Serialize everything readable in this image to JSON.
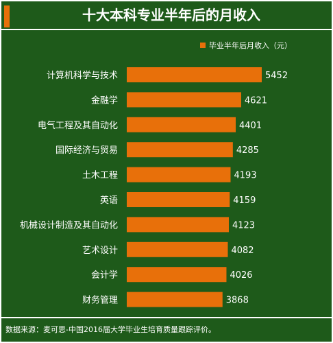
{
  "title": "十大本科专业半年后的月收入",
  "source_note": "数据来源：麦可思-中国2016届大学毕业生培育质量跟踪评价。",
  "colors": {
    "background": "#1e5a1a",
    "bar": "#e8700a",
    "text": "#ffffff"
  },
  "chart_data": {
    "type": "bar",
    "orientation": "horizontal",
    "legend_position": "top-right",
    "grid": false,
    "series": [
      {
        "name": "毕业半年后月收入（元）",
        "values": [
          5452,
          4621,
          4401,
          4285,
          4193,
          4159,
          4123,
          4082,
          4026,
          3868
        ]
      }
    ],
    "categories": [
      "计算机科学与技术",
      "金融学",
      "电气工程及其自动化",
      "国际经济与贸易",
      "土木工程",
      "英语",
      "机械设计制造及其自动化",
      "艺术设计",
      "会计学",
      "财务管理"
    ],
    "xlim": [
      0,
      6000
    ],
    "title": "十大本科专业半年后的月收入"
  }
}
